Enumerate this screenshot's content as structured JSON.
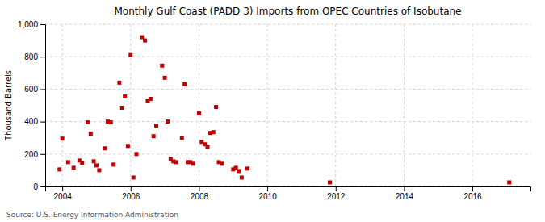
{
  "chart_data": {
    "type": "scatter",
    "title": "Monthly Gulf Coast (PADD 3) Imports from OPEC Countries of Isobutane",
    "ylabel": "Thousand Barrels",
    "source": "Source: U.S. Energy Information Administration",
    "color": "#c00000",
    "marker": "square",
    "grid": true,
    "xlim": [
      2003.5,
      2017.7
    ],
    "ylim": [
      0,
      1000
    ],
    "xticks": [
      2004,
      2006,
      2008,
      2010,
      2012,
      2014,
      2016
    ],
    "yticks": [
      0,
      200,
      400,
      600,
      800,
      {
        "value": 1000,
        "label": "1,000"
      }
    ],
    "x": [
      2003.92,
      2004.0,
      2004.17,
      2004.33,
      2004.5,
      2004.58,
      2004.75,
      2004.83,
      2004.92,
      2005.0,
      2005.08,
      2005.25,
      2005.33,
      2005.42,
      2005.5,
      2005.67,
      2005.75,
      2005.83,
      2005.92,
      2006.0,
      2006.08,
      2006.17,
      2006.33,
      2006.42,
      2006.5,
      2006.58,
      2006.67,
      2006.75,
      2006.92,
      2007.0,
      2007.08,
      2007.17,
      2007.25,
      2007.33,
      2007.5,
      2007.58,
      2007.67,
      2007.75,
      2007.83,
      2008.0,
      2008.08,
      2008.17,
      2008.25,
      2008.33,
      2008.42,
      2008.5,
      2008.58,
      2008.67,
      2009.0,
      2009.08,
      2009.17,
      2009.25,
      2009.42,
      2011.83,
      2017.08
    ],
    "values": [
      105,
      295,
      150,
      115,
      160,
      145,
      395,
      325,
      155,
      130,
      100,
      235,
      400,
      395,
      135,
      640,
      485,
      555,
      250,
      810,
      55,
      200,
      920,
      900,
      525,
      540,
      310,
      375,
      745,
      670,
      400,
      170,
      155,
      150,
      300,
      630,
      150,
      150,
      140,
      450,
      275,
      260,
      245,
      330,
      335,
      490,
      150,
      140,
      105,
      115,
      95,
      55,
      110,
      25,
      25
    ]
  }
}
